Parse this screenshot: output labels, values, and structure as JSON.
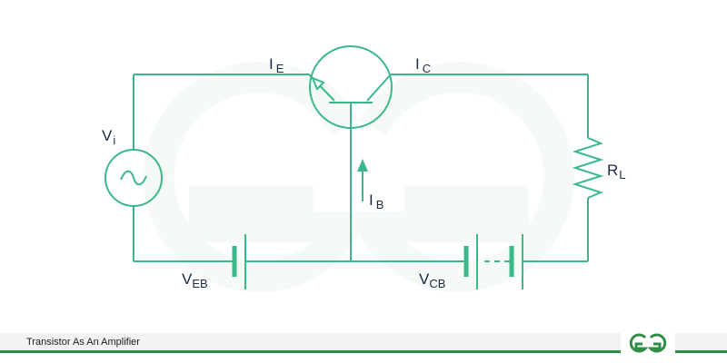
{
  "caption": "Transistor As An Amplifier",
  "brand": {
    "logo": "geeksforgeeks-logo",
    "color": "#2f8d46"
  },
  "colors": {
    "wire": "#3bb88a",
    "text": "#1b2a44",
    "watermark": "#eef6f1"
  },
  "labels": {
    "ie": {
      "main": "I",
      "sub": "E"
    },
    "ic": {
      "main": "I",
      "sub": "C"
    },
    "vi": {
      "main": "V",
      "sub": "i"
    },
    "ib": {
      "main": "I",
      "sub": "B"
    },
    "rl": {
      "main": "R",
      "sub": "L"
    },
    "veb": {
      "main": "V",
      "sub": "EB"
    },
    "vcb": {
      "main": "V",
      "sub": "CB"
    }
  }
}
